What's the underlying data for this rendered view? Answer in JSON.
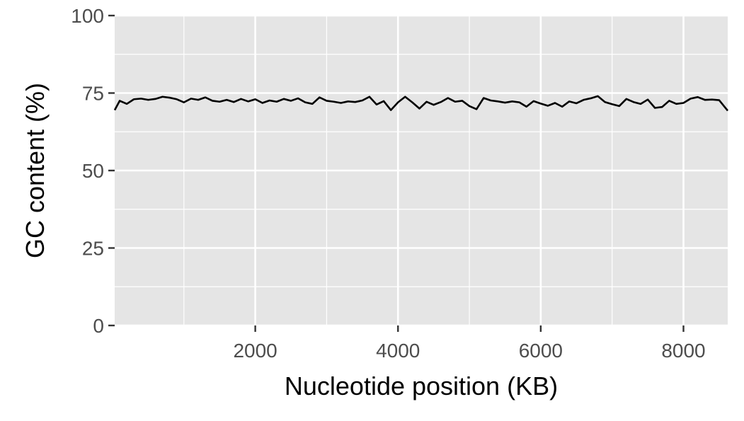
{
  "chart_data": {
    "type": "line",
    "title": "",
    "xlabel": "Nucleotide position (KB)",
    "ylabel": "GC content (%)",
    "xlim": [
      30,
      8620
    ],
    "ylim": [
      0,
      100
    ],
    "x_ticks": [
      2000,
      4000,
      6000,
      8000
    ],
    "y_ticks": [
      0,
      25,
      50,
      75,
      100
    ],
    "x_tick_labels": [
      "2000",
      "4000",
      "6000",
      "8000"
    ],
    "y_tick_labels": [
      "0",
      "25",
      "50",
      "75",
      "100"
    ],
    "grid": true,
    "background": "#e5e5e5",
    "grid_color": "#ffffff",
    "line_color": "#000000",
    "series": [
      {
        "x": [
          30,
          100,
          200,
          300,
          400,
          500,
          600,
          700,
          800,
          900,
          1000,
          1100,
          1200,
          1300,
          1400,
          1500,
          1600,
          1700,
          1800,
          1900,
          2000,
          2100,
          2200,
          2300,
          2400,
          2500,
          2600,
          2700,
          2800,
          2900,
          3000,
          3100,
          3200,
          3300,
          3400,
          3500,
          3600,
          3700,
          3800,
          3900,
          4000,
          4100,
          4200,
          4300,
          4400,
          4500,
          4600,
          4700,
          4800,
          4900,
          5000,
          5100,
          5200,
          5300,
          5400,
          5500,
          5600,
          5700,
          5800,
          5900,
          6000,
          6100,
          6200,
          6300,
          6400,
          6500,
          6600,
          6700,
          6800,
          6900,
          7000,
          7100,
          7200,
          7300,
          7400,
          7500,
          7600,
          7700,
          7800,
          7900,
          8000,
          8100,
          8200,
          8300,
          8400,
          8500,
          8620
        ],
        "y": [
          69.5,
          72.5,
          71.5,
          73,
          73.2,
          72.8,
          73.1,
          73.8,
          73.5,
          73,
          72,
          73.2,
          72.8,
          73.6,
          72.5,
          72.2,
          72.8,
          72.1,
          73.1,
          72.3,
          73,
          71.8,
          72.6,
          72.2,
          73.1,
          72.5,
          73.3,
          72,
          71.5,
          73.6,
          72.5,
          72.2,
          71.8,
          72.3,
          72.1,
          72.6,
          73.8,
          71.3,
          72.4,
          69.5,
          72,
          73.8,
          72,
          70,
          72.2,
          71.2,
          72.1,
          73.4,
          72.2,
          72.5,
          70.8,
          69.8,
          73.4,
          72.6,
          72.3,
          71.9,
          72.3,
          72,
          70.6,
          72.4,
          71.6,
          70.9,
          71.8,
          70.6,
          72.3,
          71.7,
          72.8,
          73.3,
          74,
          72.1,
          71.4,
          70.8,
          73.1,
          72.1,
          71.5,
          72.9,
          70.2,
          70.5,
          72.5,
          71.5,
          71.8,
          73.2,
          73.7,
          72.8,
          72.9,
          72.7,
          69.3
        ]
      }
    ]
  }
}
